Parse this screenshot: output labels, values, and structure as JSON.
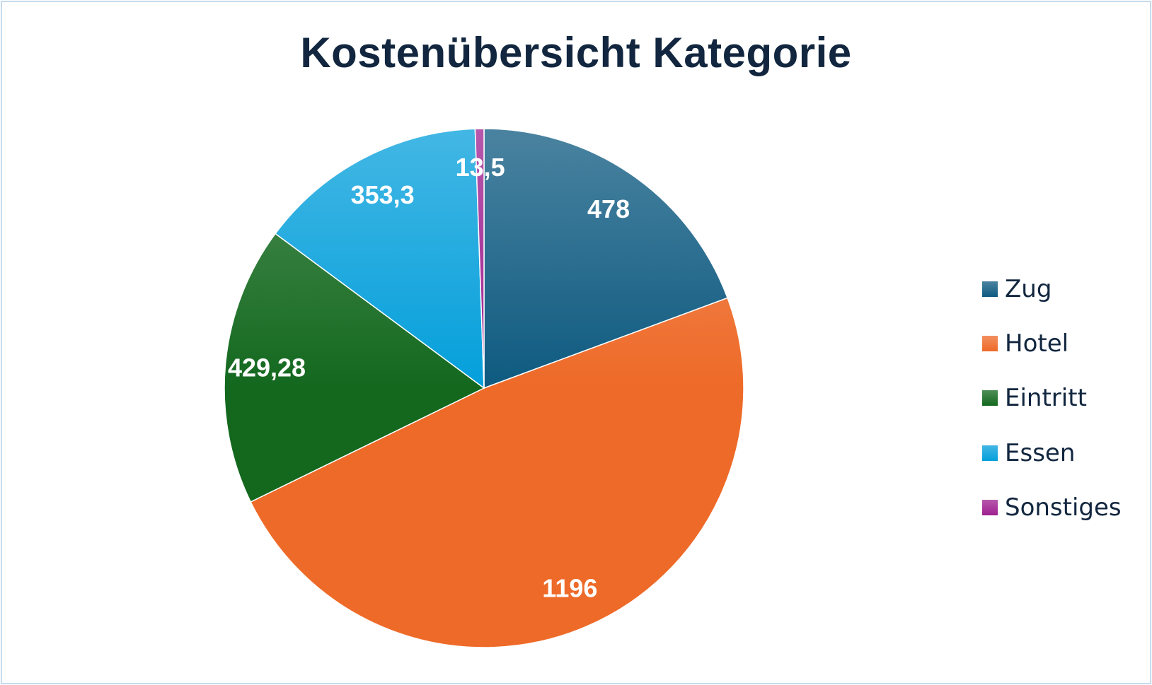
{
  "chart_data": {
    "type": "pie",
    "title": "Kostenübersicht Kategorie",
    "categories": [
      "Zug",
      "Hotel",
      "Eintritt",
      "Essen",
      "Sonstiges"
    ],
    "values": [
      478,
      1196,
      429.28,
      353.3,
      13.5
    ],
    "data_labels": [
      "478",
      "1196",
      "429,28",
      "353,3",
      "13,5"
    ],
    "colors": [
      "#0e5a80",
      "#ee6a28",
      "#13681e",
      "#049fdb",
      "#9e2090"
    ],
    "legend_position": "right",
    "start_angle_deg": 0,
    "direction": "clockwise"
  }
}
